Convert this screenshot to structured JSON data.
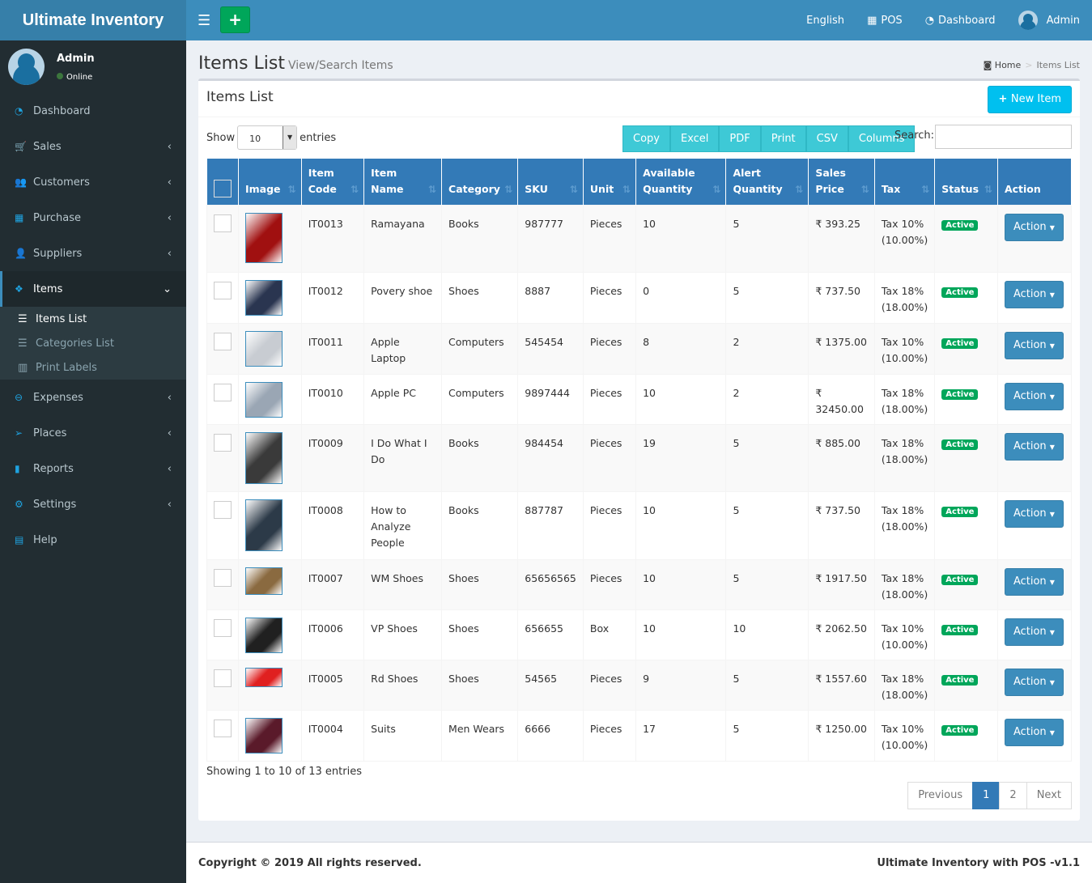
{
  "app": {
    "title": "Ultimate Inventory"
  },
  "topnav": {
    "language": "English",
    "pos": "POS",
    "dashboard": "Dashboard",
    "user": "Admin"
  },
  "sidebar": {
    "user": "Admin",
    "status": "Online",
    "items": [
      {
        "label": "Dashboard",
        "icon": "dashboard-icon"
      },
      {
        "label": "Sales",
        "icon": "cart-icon"
      },
      {
        "label": "Customers",
        "icon": "users-icon"
      },
      {
        "label": "Purchase",
        "icon": "grid-icon"
      },
      {
        "label": "Suppliers",
        "icon": "user-plus-icon"
      },
      {
        "label": "Items",
        "icon": "cubes-icon"
      }
    ],
    "subitems": [
      {
        "label": "Items List"
      },
      {
        "label": "Categories List"
      },
      {
        "label": "Print Labels"
      }
    ],
    "items2": [
      {
        "label": "Expenses",
        "icon": "minus-circle-icon"
      },
      {
        "label": "Places",
        "icon": "paper-plane-icon"
      },
      {
        "label": "Reports",
        "icon": "bar-chart-icon"
      },
      {
        "label": "Settings",
        "icon": "cogs-icon"
      },
      {
        "label": "Help",
        "icon": "book-icon"
      }
    ]
  },
  "page": {
    "title": "Items List",
    "subtitle": "View/Search Items",
    "breadcrumb": [
      "Home",
      "Items List"
    ]
  },
  "box": {
    "title": "Items List",
    "new_item": "New Item",
    "show": "Show",
    "entries": "entries",
    "page_size": "10",
    "search_label": "Search:",
    "search_value": "",
    "export_buttons": [
      "Copy",
      "Excel",
      "PDF",
      "Print",
      "CSV",
      "Columns"
    ]
  },
  "table": {
    "headers": [
      [
        "Image"
      ],
      [
        "Item",
        "Code"
      ],
      [
        "Item",
        "Name"
      ],
      [
        "Category"
      ],
      [
        "SKU"
      ],
      [
        "Unit"
      ],
      [
        "Available",
        "Quantity"
      ],
      [
        "Alert",
        "Quantity"
      ],
      [
        "Sales",
        "Price"
      ],
      [
        "Tax"
      ],
      [
        "Status"
      ],
      [
        "Action"
      ]
    ],
    "rows": [
      {
        "code": "IT0013",
        "name": "Ramayana",
        "category": "Books",
        "sku": "987777",
        "unit": "Pieces",
        "avail": "10",
        "alert": "5",
        "price": "₹ 393.25",
        "tax": "Tax 10%",
        "taxpct": "(10.00%)",
        "status": "Active",
        "action": "Action",
        "img": "#a01010"
      },
      {
        "code": "IT0012",
        "name": "Povery shoe",
        "category": "Shoes",
        "sku": "8887",
        "unit": "Pieces",
        "avail": "0",
        "alert": "5",
        "price": "₹ 737.50",
        "tax": "Tax 18%",
        "taxpct": "(18.00%)",
        "status": "Active",
        "action": "Action",
        "img": "#2a3550"
      },
      {
        "code": "IT0011",
        "name": "Apple Laptop",
        "category": "Computers",
        "sku": "545454",
        "unit": "Pieces",
        "avail": "8",
        "alert": "2",
        "price": "₹ 1375.00",
        "tax": "Tax 10%",
        "taxpct": "(10.00%)",
        "status": "Active",
        "action": "Action",
        "img": "#c8ccd2"
      },
      {
        "code": "IT0010",
        "name": "Apple PC",
        "category": "Computers",
        "sku": "9897444",
        "unit": "Pieces",
        "avail": "10",
        "alert": "2",
        "price": "₹ 32450.00",
        "tax": "Tax 18%",
        "taxpct": "(18.00%)",
        "status": "Active",
        "action": "Action",
        "img": "#9aa6b4"
      },
      {
        "code": "IT0009",
        "name": "I Do What I Do",
        "category": "Books",
        "sku": "984454",
        "unit": "Pieces",
        "avail": "19",
        "alert": "5",
        "price": "₹ 885.00",
        "tax": "Tax 18%",
        "taxpct": "(18.00%)",
        "status": "Active",
        "action": "Action",
        "img": "#3a3a3a"
      },
      {
        "code": "IT0008",
        "name": "How to Analyze People",
        "category": "Books",
        "sku": "887787",
        "unit": "Pieces",
        "avail": "10",
        "alert": "5",
        "price": "₹ 737.50",
        "tax": "Tax 18%",
        "taxpct": "(18.00%)",
        "status": "Active",
        "action": "Action",
        "img": "#2c3a48"
      },
      {
        "code": "IT0007",
        "name": "WM Shoes",
        "category": "Shoes",
        "sku": "65656565",
        "unit": "Pieces",
        "avail": "10",
        "alert": "5",
        "price": "₹ 1917.50",
        "tax": "Tax 18%",
        "taxpct": "(18.00%)",
        "status": "Active",
        "action": "Action",
        "img": "#8a6a40"
      },
      {
        "code": "IT0006",
        "name": "VP Shoes",
        "category": "Shoes",
        "sku": "656655",
        "unit": "Box",
        "avail": "10",
        "alert": "10",
        "price": "₹ 2062.50",
        "tax": "Tax 10%",
        "taxpct": "(10.00%)",
        "status": "Active",
        "action": "Action",
        "img": "#202020"
      },
      {
        "code": "IT0005",
        "name": "Rd Shoes",
        "category": "Shoes",
        "sku": "54565",
        "unit": "Pieces",
        "avail": "9",
        "alert": "5",
        "price": "₹ 1557.60",
        "tax": "Tax 18%",
        "taxpct": "(18.00%)",
        "status": "Active",
        "action": "Action",
        "img": "#e02020"
      },
      {
        "code": "IT0004",
        "name": "Suits",
        "category": "Men Wears",
        "sku": "6666",
        "unit": "Pieces",
        "avail": "17",
        "alert": "5",
        "price": "₹ 1250.00",
        "tax": "Tax 10%",
        "taxpct": "(10.00%)",
        "status": "Active",
        "action": "Action",
        "img": "#5a1a2a"
      }
    ]
  },
  "info": "Showing 1 to 10 of 13 entries",
  "pager": {
    "prev": "Previous",
    "pages": [
      "1",
      "2"
    ],
    "next": "Next"
  },
  "footer": {
    "left": "Copyright © 2019 All rights reserved.",
    "right": "Ultimate Inventory with POS -v1.1"
  }
}
